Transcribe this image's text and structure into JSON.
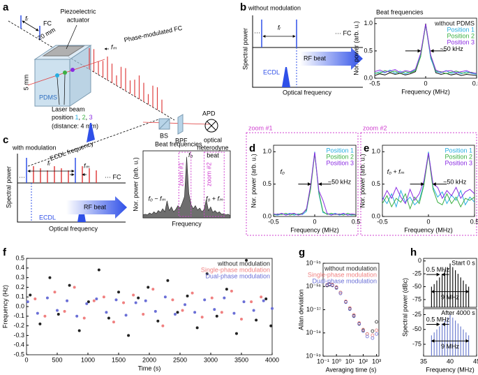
{
  "panel_labels": [
    "a",
    "b",
    "c",
    "d",
    "e",
    "f",
    "g",
    "h"
  ],
  "panel_a": {
    "fc": "FC",
    "fr": "fᵣ",
    "actuator": [
      "Piezoelectric",
      "actuator"
    ],
    "width": "20 mm",
    "height": "5 mm",
    "pdms": "PDMS",
    "fm": "fₘ",
    "pmfc": "Phase-modulated FC",
    "laser": "Laser beam",
    "position": [
      "position ",
      "1",
      ", ",
      "2",
      ", ",
      "3"
    ],
    "distance": "(distance: 4 mm)",
    "ecdl": "ECDL frequency",
    "bs": "BS",
    "bpf": "BPF",
    "apd": "APD",
    "beat": [
      "optical",
      "heterodyne",
      "beat"
    ]
  },
  "panel_b": {
    "title": "without modulation",
    "fr": "fᵣ",
    "dots": "···",
    "fc": "··· FC",
    "ylabel": "Spectral power",
    "ecdl": "ECDL",
    "rf": "RF beat",
    "xlabel": "Optical frequency"
  },
  "panel_c": {
    "title": "with modulation",
    "fr": "fᵣ",
    "fm": "fₘ",
    "dots": "···",
    "fc": "··· FC",
    "ylabel": "Spectral power",
    "ecdl": "ECDL",
    "rf": "RF beat",
    "xlabel": "Optical frequency"
  },
  "chart_data": [
    {
      "type": "line",
      "title": "Beat frequencies",
      "xlabel": "Frequency (MHz)",
      "ylabel": "Nor. power (arb. u.)",
      "legend": "upper right",
      "annotations": [
        "~50 kHz"
      ],
      "x": [
        -0.5,
        -0.45,
        -0.4,
        -0.35,
        -0.3,
        -0.25,
        -0.2,
        -0.15,
        -0.1,
        -0.05,
        0,
        0.05,
        0.1,
        0.15,
        0.2,
        0.25,
        0.3,
        0.35,
        0.4,
        0.45,
        0.5
      ],
      "series": [
        {
          "name": "without PDMS",
          "color": "#111111",
          "values": [
            0.05,
            0.08,
            0.06,
            0.1,
            0.07,
            0.09,
            0.06,
            0.08,
            0.12,
            0.4,
            1.0,
            0.38,
            0.1,
            0.07,
            0.09,
            0.06,
            0.08,
            0.05,
            0.07,
            0.06,
            0.05
          ]
        },
        {
          "name": "Position 1",
          "color": "#27aee0",
          "values": [
            0.08,
            0.12,
            0.1,
            0.15,
            0.09,
            0.13,
            0.08,
            0.11,
            0.15,
            0.42,
            0.98,
            0.36,
            0.12,
            0.1,
            0.14,
            0.09,
            0.11,
            0.08,
            0.12,
            0.09,
            0.07
          ]
        },
        {
          "name": "Position 2",
          "color": "#3cb043",
          "values": [
            0.1,
            0.09,
            0.14,
            0.11,
            0.13,
            0.08,
            0.12,
            0.1,
            0.14,
            0.39,
            0.97,
            0.4,
            0.13,
            0.12,
            0.08,
            0.11,
            0.13,
            0.1,
            0.09,
            0.11,
            0.08
          ]
        },
        {
          "name": "Position 3",
          "color": "#8a2be2",
          "values": [
            0.12,
            0.15,
            0.11,
            0.13,
            0.16,
            0.1,
            0.14,
            0.12,
            0.17,
            0.45,
            0.99,
            0.42,
            0.15,
            0.11,
            0.13,
            0.14,
            0.1,
            0.12,
            0.14,
            0.1,
            0.09
          ]
        }
      ],
      "xlim": [
        -0.5,
        0.5
      ],
      "ylim": [
        0,
        1.1
      ],
      "xticks": [
        -0.5,
        0,
        0.5
      ],
      "yticks": [
        {
          "value": 0,
          "label": "0.0"
        },
        0.5,
        {
          "value": 1,
          "label": "1.0"
        }
      ]
    },
    {
      "type": "area",
      "title": "Beat frequencies",
      "xlabel": "Frequency",
      "ylabel": "Nor. power (arb. u.)",
      "color": "#555555",
      "annotations": [
        "f₀",
        "f₀ − fₘ",
        "f₀ + fₘ",
        "zoom #1",
        "zoom #2"
      ],
      "x": [
        0,
        1,
        2,
        3,
        4,
        5,
        6,
        7,
        8,
        9,
        10,
        11,
        12,
        13,
        14,
        15,
        16,
        17,
        18,
        19,
        20,
        21,
        22,
        23,
        24,
        25,
        26,
        27,
        28,
        29,
        30,
        31,
        32,
        33,
        34,
        35,
        36,
        37,
        38,
        39,
        40
      ],
      "values": [
        0.05,
        0.06,
        0.05,
        0.08,
        0.06,
        0.1,
        0.07,
        0.12,
        0.09,
        0.15,
        0.1,
        0.28,
        0.12,
        0.18,
        0.1,
        0.14,
        0.2,
        0.16,
        0.25,
        0.35,
        1.0,
        0.4,
        0.22,
        0.15,
        0.2,
        0.13,
        0.16,
        0.1,
        0.14,
        0.3,
        0.12,
        0.18,
        0.09,
        0.12,
        0.08,
        0.1,
        0.06,
        0.07,
        0.05,
        0.06,
        0.04
      ],
      "xlim": [
        0,
        40
      ],
      "ylim": [
        0,
        1.1
      ]
    },
    {
      "type": "line",
      "title": "zoom #1",
      "xlabel": "Frequency (MHz)",
      "ylabel": "Nor. power (arb. u.)",
      "legend": "upper right",
      "annotations": [
        "f₀",
        "~50 kHz"
      ],
      "x": [
        -0.5,
        -0.45,
        -0.4,
        -0.35,
        -0.3,
        -0.25,
        -0.2,
        -0.15,
        -0.1,
        -0.05,
        0,
        0.05,
        0.1,
        0.15,
        0.2,
        0.25,
        0.3,
        0.35,
        0.4,
        0.45,
        0.5
      ],
      "series": [
        {
          "name": "Position 1",
          "color": "#27aee0",
          "values": [
            0.03,
            0.02,
            0.04,
            0.03,
            0.05,
            0.02,
            0.04,
            0.03,
            0.08,
            0.45,
            1.0,
            0.35,
            0.06,
            0.04,
            0.03,
            0.05,
            0.02,
            0.04,
            0.03,
            0.02,
            0.03
          ]
        },
        {
          "name": "Position 2",
          "color": "#3cb043",
          "values": [
            0.02,
            0.04,
            0.03,
            0.05,
            0.02,
            0.04,
            0.03,
            0.05,
            0.1,
            0.42,
            0.97,
            0.38,
            0.08,
            0.03,
            0.05,
            0.03,
            0.04,
            0.02,
            0.05,
            0.03,
            0.02
          ]
        },
        {
          "name": "Position 3",
          "color": "#8a2be2",
          "values": [
            0.04,
            0.03,
            0.05,
            0.02,
            0.04,
            0.05,
            0.02,
            0.04,
            0.12,
            0.48,
            0.99,
            0.4,
            0.25,
            0.05,
            0.02,
            0.04,
            0.03,
            0.05,
            0.02,
            0.04,
            0.03
          ]
        }
      ],
      "xlim": [
        -0.5,
        0.5
      ],
      "ylim": [
        0,
        1.1
      ],
      "xticks": [
        -0.5,
        0,
        0.5
      ],
      "yticks": [
        {
          "value": 0,
          "label": "0.0"
        },
        0.5,
        {
          "value": 1,
          "label": "1.0"
        }
      ]
    },
    {
      "type": "line",
      "title": "zoom #2",
      "xlabel": "Frequency (MHz)",
      "ylabel": "Nor. power (arb. u.)",
      "legend": "upper right",
      "annotations": [
        "f₀ + fₘ",
        "~50 kHz"
      ],
      "x": [
        -0.5,
        -0.45,
        -0.4,
        -0.35,
        -0.3,
        -0.25,
        -0.2,
        -0.15,
        -0.1,
        -0.05,
        0,
        0.05,
        0.1,
        0.15,
        0.2,
        0.25,
        0.3,
        0.35,
        0.4,
        0.45,
        0.5
      ],
      "series": [
        {
          "name": "Position 1",
          "color": "#27aee0",
          "values": [
            0.3,
            0.2,
            0.35,
            0.15,
            0.4,
            0.22,
            0.3,
            0.18,
            0.25,
            0.5,
            1.0,
            0.45,
            0.3,
            0.38,
            0.2,
            0.33,
            0.25,
            0.4,
            0.18,
            0.3,
            0.22
          ]
        },
        {
          "name": "Position 2",
          "color": "#3cb043",
          "values": [
            0.2,
            0.32,
            0.15,
            0.28,
            0.22,
            0.35,
            0.12,
            0.3,
            0.2,
            0.48,
            0.96,
            0.42,
            0.22,
            0.18,
            0.35,
            0.2,
            0.3,
            0.15,
            0.28,
            0.25,
            0.3
          ]
        },
        {
          "name": "Position 3",
          "color": "#8a2be2",
          "values": [
            0.25,
            0.4,
            0.28,
            0.45,
            0.3,
            0.2,
            0.42,
            0.25,
            0.35,
            0.55,
            0.98,
            0.5,
            0.45,
            0.28,
            0.4,
            0.32,
            0.45,
            0.28,
            0.38,
            0.42,
            0.35
          ]
        }
      ],
      "xlim": [
        -0.5,
        0.5
      ],
      "ylim": [
        0,
        1.1
      ],
      "xticks": [
        -0.5,
        0,
        0.5
      ],
      "yticks": [
        {
          "value": 0,
          "label": "0.0"
        },
        0.5,
        {
          "value": 1,
          "label": "1.0"
        }
      ]
    },
    {
      "type": "scatter",
      "xlabel": "Time (s)",
      "ylabel": "Frequency (Hz)",
      "legend": "upper right",
      "series": [
        {
          "name": "without modulation",
          "color": "#222222",
          "x": [
            60,
            220,
            380,
            520,
            700,
            860,
            1010,
            1180,
            1340,
            1500,
            1660,
            1820,
            1980,
            2140,
            2300,
            2460,
            2620,
            2780,
            2940,
            3100,
            3260,
            3420,
            3580,
            3740,
            3900,
            3980
          ],
          "values": [
            0.12,
            -0.18,
            0.3,
            -0.08,
            0.22,
            -0.25,
            0.05,
            0.38,
            -0.12,
            0.15,
            -0.3,
            0.09,
            0.2,
            -0.15,
            0.27,
            -0.06,
            0.11,
            -0.22,
            0.34,
            -0.1,
            0.18,
            -0.28,
            0.48,
            -0.14,
            0.08,
            -0.2
          ]
        },
        {
          "name": "Single-phase modulation",
          "color": "#f08080",
          "x": [
            140,
            300,
            460,
            620,
            780,
            940,
            1100,
            1260,
            1420,
            1580,
            1740,
            1900,
            2060,
            2220,
            2380,
            2540,
            2700,
            2860,
            3020,
            3180,
            3340,
            3500,
            3660,
            3820
          ],
          "values": [
            0.08,
            -0.1,
            0.15,
            -0.05,
            0.2,
            -0.12,
            0.06,
            0.1,
            -0.16,
            0.04,
            0.12,
            -0.08,
            0.18,
            -0.2,
            0.07,
            -0.04,
            0.14,
            -0.11,
            0.09,
            -0.06,
            0.16,
            -0.13,
            0.05,
            0.1
          ]
        },
        {
          "name": "Dual-phase modulation",
          "color": "#6a6fd6",
          "x": [
            20,
            180,
            340,
            500,
            660,
            820,
            980,
            1140,
            1300,
            1460,
            1620,
            1780,
            1940,
            2100,
            2260,
            2420,
            2580,
            2740,
            2900,
            3060,
            3220,
            3380,
            3540,
            3700,
            3860,
            4000
          ],
          "values": [
            0.05,
            -0.07,
            0.09,
            -0.04,
            0.06,
            -0.1,
            0.03,
            0.08,
            -0.06,
            0.07,
            -0.09,
            0.04,
            0.06,
            -0.05,
            0.1,
            -0.08,
            0.02,
            -0.06,
            0.07,
            -0.03,
            0.09,
            -0.07,
            0.05,
            -0.04,
            0.06,
            -0.02
          ]
        }
      ],
      "xlim": [
        0,
        4000
      ],
      "ylim": [
        -0.5,
        0.5
      ],
      "xticks": [
        0,
        500,
        1000,
        1500,
        2000,
        2500,
        3000,
        3500,
        4000
      ],
      "yticks": [
        -0.5,
        -0.4,
        -0.3,
        -0.2,
        -0.1,
        {
          "value": 0,
          "label": "0.0"
        },
        0.1,
        0.2,
        0.3,
        0.4,
        0.5
      ]
    },
    {
      "type": "scatter",
      "xlabel": "Averaging time (s)",
      "ylabel": "Allan deviation",
      "legend": "upper right",
      "xlog": true,
      "ylog": true,
      "x": [
        0.2,
        0.3,
        0.5,
        1,
        2,
        5,
        10,
        20,
        50,
        100,
        200,
        500,
        1000
      ],
      "series": [
        {
          "name": "without modulation",
          "color": "#222222",
          "values": [
            1.1e-16,
            1.2e-16,
            1.15e-16,
            9e-17,
            5.5e-17,
            2.2e-17,
            1.1e-17,
            5.5e-18,
            2.5e-18,
            1.3e-18,
            9e-19,
            1.2e-18,
            3e-18
          ]
        },
        {
          "name": "Single-phase modulation",
          "color": "#f08080",
          "values": [
            1.2e-16,
            1.3e-16,
            1.2e-16,
            9.5e-17,
            5.5e-17,
            2.3e-17,
            1.2e-17,
            6e-18,
            2.7e-18,
            1.4e-18,
            9e-19,
            8e-19,
            1.3e-18
          ]
        },
        {
          "name": "Dual-phase modulation",
          "color": "#6a6fd6",
          "values": [
            1.15e-16,
            1.25e-16,
            1.1e-16,
            8.5e-17,
            5e-17,
            2.1e-17,
            1.05e-17,
            5.2e-18,
            2.4e-18,
            1.2e-18,
            7e-19,
            6e-19,
            9e-19
          ]
        }
      ],
      "xlim": [
        0.1,
        1500
      ],
      "ylim": [
        1e-19,
        1e-15
      ],
      "xticks": [
        {
          "value": 0.1,
          "label": "10⁻¹"
        },
        {
          "value": 1,
          "label": "10⁰"
        },
        {
          "value": 10,
          "label": "10¹"
        },
        {
          "value": 100,
          "label": "10²"
        },
        {
          "value": 1000,
          "label": "10³"
        }
      ],
      "yticks": [
        {
          "value": 1e-15,
          "label": "10⁻¹⁵"
        },
        {
          "value": 1e-16,
          "label": "10⁻¹⁶"
        },
        {
          "value": 1e-17,
          "label": "10⁻¹⁷"
        },
        {
          "value": 1e-18,
          "label": "10⁻¹⁸"
        },
        {
          "value": 1e-19,
          "label": "10⁻¹⁹"
        }
      ]
    },
    {
      "type": "stem",
      "ylabel": "Spectral power (dBc)",
      "color": "#111111",
      "annotations": [
        "Start 0 s",
        "0.5 MHz",
        "9 MHz"
      ],
      "x": [
        36.5,
        37,
        37.5,
        38,
        38.5,
        39,
        39.5,
        40,
        40.5,
        41,
        41.5,
        42,
        42.5,
        43,
        43.5
      ],
      "values": [
        -50,
        -45,
        -38,
        -32,
        -25,
        -18,
        -12,
        -5,
        -12,
        -18,
        -25,
        -32,
        -38,
        -45,
        -50
      ],
      "xlim": [
        35,
        45
      ],
      "ylim": [
        -90,
        5
      ],
      "yticks": [
        0,
        -25,
        -50,
        -75
      ]
    },
    {
      "type": "stem",
      "xlabel": "Frequency (MHz)",
      "color": "#7080d0",
      "annotations": [
        "After 4000 s",
        "0.5 MHz",
        "9 MHz"
      ],
      "x": [
        36.5,
        37,
        37.5,
        38,
        38.5,
        39,
        39.5,
        40,
        40.5,
        41,
        41.5,
        42,
        42.5,
        43,
        43.5
      ],
      "values": [
        -60,
        -55,
        -50,
        -45,
        -40,
        -35,
        -30,
        -25,
        -30,
        -35,
        -40,
        -45,
        -50,
        -55,
        -60
      ],
      "xlim": [
        35,
        45
      ],
      "ylim": [
        -95,
        -15
      ],
      "xticks": [
        35,
        40,
        45
      ],
      "yticks": [
        -25,
        -50,
        -75
      ]
    }
  ]
}
